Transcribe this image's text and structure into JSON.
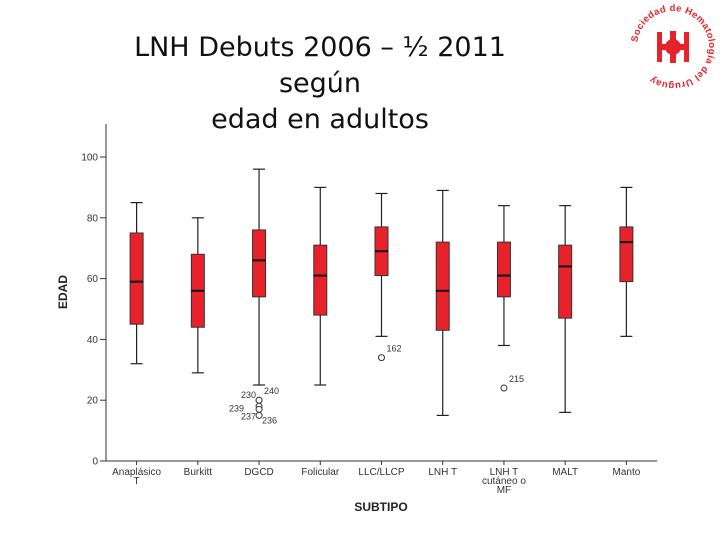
{
  "slide": {
    "title_line1": "LNH Debuts 2006 – ½ 2011 según",
    "title_line2": "edad en adultos",
    "logo_text": "Sociedad de Hematología del Uruguay",
    "accent_color": "#e8222a"
  },
  "chart_data": {
    "type": "boxplot",
    "xlabel": "SUBTIPO",
    "ylabel": "EDAD",
    "ylim": [
      0,
      100
    ],
    "yticks": [
      0,
      20,
      40,
      60,
      80,
      100
    ],
    "box_color": "#e8222a",
    "categories": [
      {
        "label": [
          "Anaplásico",
          "T"
        ],
        "min": 32,
        "q1": 45,
        "median": 59,
        "q3": 75,
        "max": 85,
        "outliers": []
      },
      {
        "label": [
          "Burkitt"
        ],
        "min": 29,
        "q1": 44,
        "median": 56,
        "q3": 68,
        "max": 80,
        "outliers": []
      },
      {
        "label": [
          "DGCD"
        ],
        "min": 25,
        "q1": 54,
        "median": 66,
        "q3": 76,
        "max": 96,
        "outliers": [
          {
            "value": 20,
            "label": "230"
          },
          {
            "value": 20,
            "label": "240"
          },
          {
            "value": 18,
            "label": "239"
          },
          {
            "value": 15,
            "label": "237"
          },
          {
            "value": 17,
            "label": "236"
          }
        ]
      },
      {
        "label": [
          "Folicular"
        ],
        "min": 25,
        "q1": 48,
        "median": 61,
        "q3": 71,
        "max": 90,
        "outliers": []
      },
      {
        "label": [
          "LLC/LLCP"
        ],
        "min": 41,
        "q1": 61,
        "median": 69,
        "q3": 77,
        "max": 88,
        "outliers": [
          {
            "value": 34,
            "label": "162"
          }
        ]
      },
      {
        "label": [
          "LNH T"
        ],
        "min": 15,
        "q1": 43,
        "median": 56,
        "q3": 72,
        "max": 89,
        "outliers": []
      },
      {
        "label": [
          "LNH T",
          "cutáneo o",
          "MF"
        ],
        "min": 38,
        "q1": 54,
        "median": 61,
        "q3": 72,
        "max": 84,
        "outliers": [
          {
            "value": 24,
            "label": "215"
          }
        ]
      },
      {
        "label": [
          "MALT"
        ],
        "min": 16,
        "q1": 47,
        "median": 64,
        "q3": 71,
        "max": 84,
        "outliers": []
      },
      {
        "label": [
          "Manto"
        ],
        "min": 41,
        "q1": 59,
        "median": 72,
        "q3": 77,
        "max": 90,
        "outliers": []
      }
    ]
  }
}
